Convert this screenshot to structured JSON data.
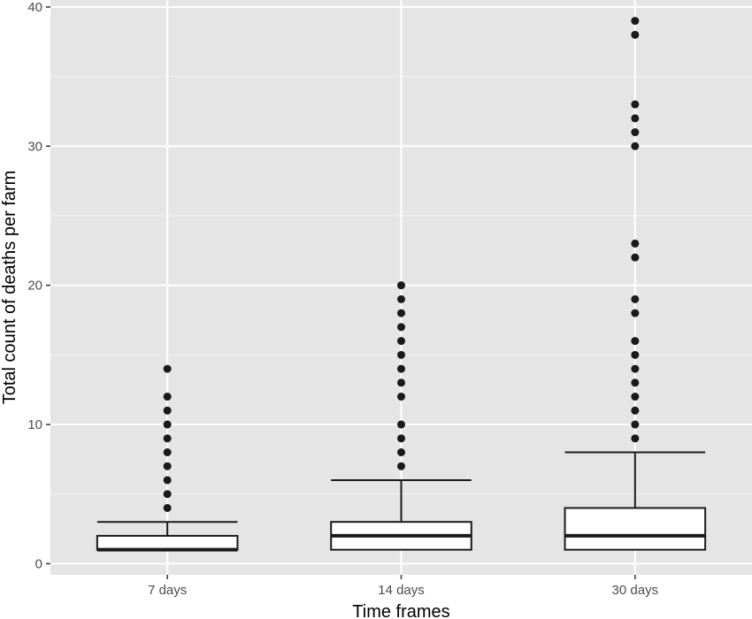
{
  "chart_data": {
    "type": "boxplot",
    "title": "",
    "xlabel": "Time frames",
    "ylabel": "Total count of deaths per farm",
    "ylim": [
      -0.8,
      40.5
    ],
    "y_ticks": [
      0,
      10,
      20,
      30,
      40
    ],
    "grid": true,
    "categories": [
      "7 days",
      "14 days",
      "30 days"
    ],
    "boxes": [
      {
        "category": "7 days",
        "lower_whisker": 1,
        "q1": 1,
        "median": 1,
        "q3": 2,
        "upper_whisker": 3,
        "outliers": [
          4,
          5,
          6,
          7,
          8,
          9,
          10,
          11,
          12,
          14
        ]
      },
      {
        "category": "14 days",
        "lower_whisker": 1,
        "q1": 1,
        "median": 2,
        "q3": 3,
        "upper_whisker": 6,
        "outliers": [
          7,
          8,
          9,
          10,
          12,
          13,
          14,
          15,
          16,
          17,
          18,
          19,
          20
        ]
      },
      {
        "category": "30 days",
        "lower_whisker": 1,
        "q1": 1,
        "median": 2,
        "q3": 4,
        "upper_whisker": 8,
        "outliers": [
          9,
          10,
          11,
          12,
          13,
          14,
          15,
          16,
          18,
          19,
          22,
          23,
          30,
          31,
          32,
          33,
          38,
          39
        ]
      }
    ]
  },
  "colors": {
    "panel_background": "#e5e5e5",
    "grid_major": "#ffffff",
    "grid_minor": "#f2f2f2",
    "box_fill": "#ffffff",
    "box_stroke": "#1a1a1a",
    "outlier": "#1a1a1a",
    "tick": "#333333"
  }
}
